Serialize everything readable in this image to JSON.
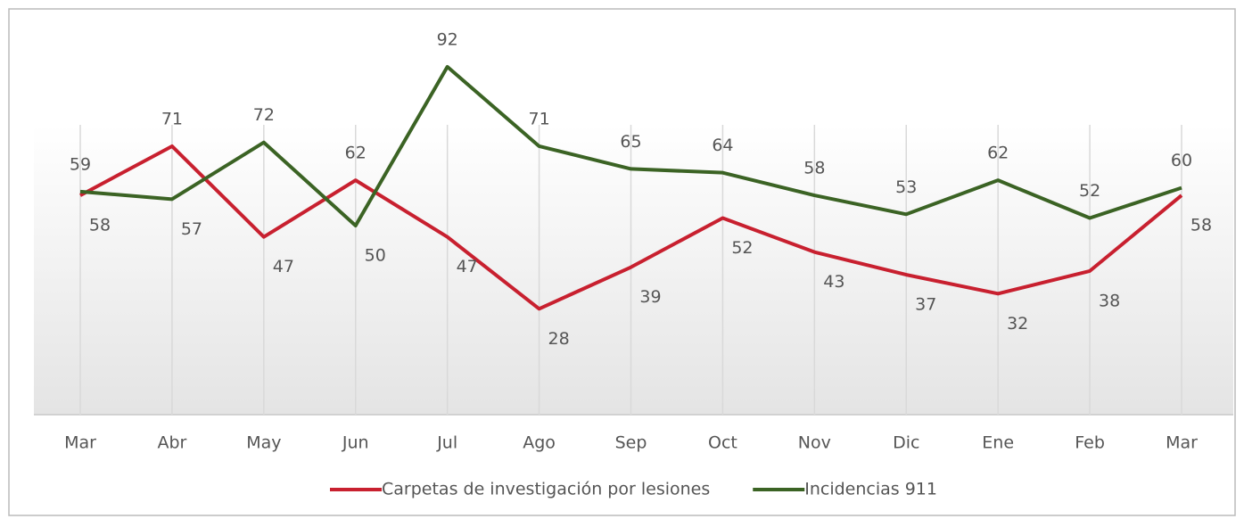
{
  "chart_data": {
    "type": "line",
    "categories": [
      "Mar",
      "Abr",
      "May",
      "Jun",
      "Jul",
      "Ago",
      "Sep",
      "Oct",
      "Nov",
      "Dic",
      "Ene",
      "Feb",
      "Mar"
    ],
    "series": [
      {
        "name": "Carpetas de investigación por lesiones",
        "color": "#c8202f",
        "values": [
          58,
          71,
          47,
          62,
          47,
          28,
          39,
          52,
          43,
          37,
          32,
          38,
          58
        ]
      },
      {
        "name": "Incidencias 911",
        "color": "#3b6324",
        "values": [
          59,
          57,
          72,
          50,
          92,
          71,
          65,
          64,
          58,
          53,
          62,
          52,
          60
        ]
      }
    ],
    "ylim": [
      0,
      100
    ],
    "legend": "bottom"
  }
}
